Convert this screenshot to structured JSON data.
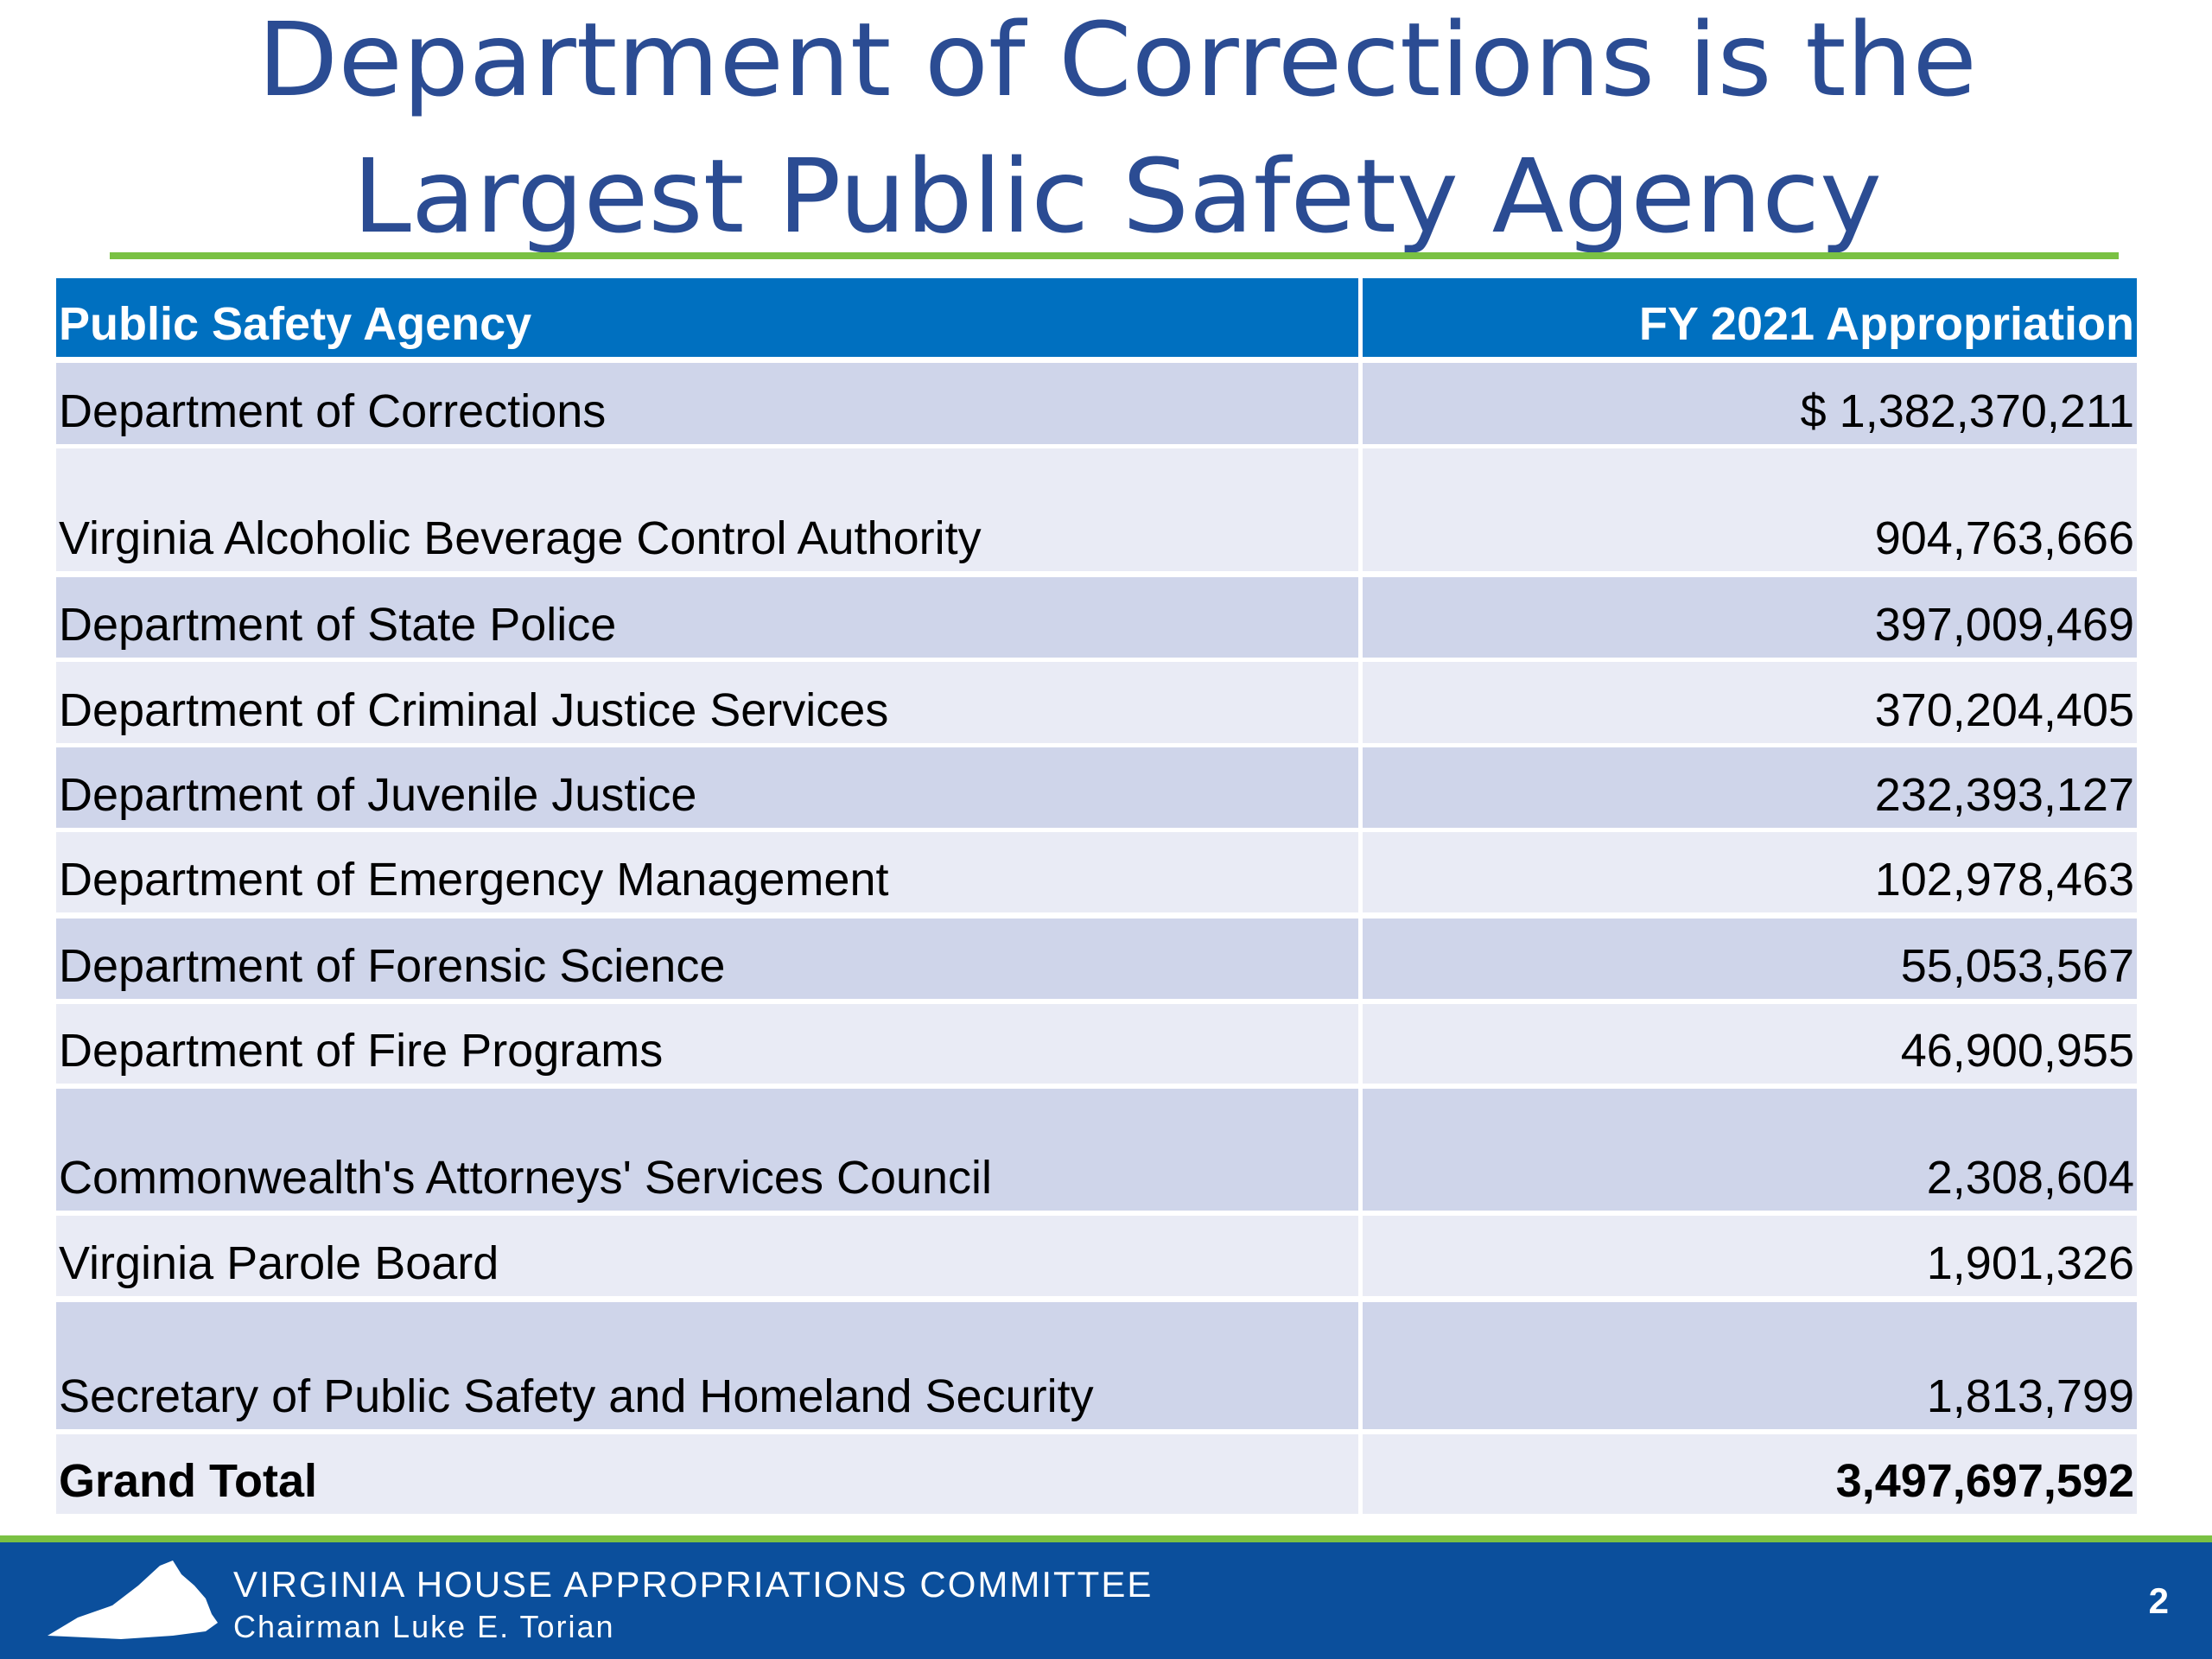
{
  "title": [
    "Department of Corrections is the",
    "Largest Public Safety Agency"
  ],
  "table": {
    "header": [
      "Public Safety Agency",
      "FY 2021 Appropriation"
    ],
    "rows": [
      [
        "Department of Corrections",
        "$ 1,382,370,211"
      ],
      [
        "Virginia Alcoholic Beverage Control Authority",
        "904,763,666"
      ],
      [
        "Department of State Police",
        "397,009,469"
      ],
      [
        "Department of Criminal Justice Services",
        "370,204,405"
      ],
      [
        "Department of Juvenile Justice",
        "232,393,127"
      ],
      [
        "Department of Emergency Management",
        "102,978,463"
      ],
      [
        "Department of Forensic Science",
        "55,053,567"
      ],
      [
        "Department of Fire Programs",
        "46,900,955"
      ],
      [
        "Commonwealth's Attorneys' Services Council",
        "2,308,604"
      ],
      [
        "Virginia Parole Board",
        "1,901,326"
      ],
      [
        "Secretary of Public Safety and Homeland Security",
        "1,813,799"
      ]
    ],
    "total": [
      "Grand Total",
      "3,497,697,592"
    ]
  },
  "footer": {
    "committee": "VIRGINIA HOUSE APPROPRIATIONS COMMITTEE",
    "chairman": "Chairman Luke E. Torian",
    "page": "2"
  }
}
